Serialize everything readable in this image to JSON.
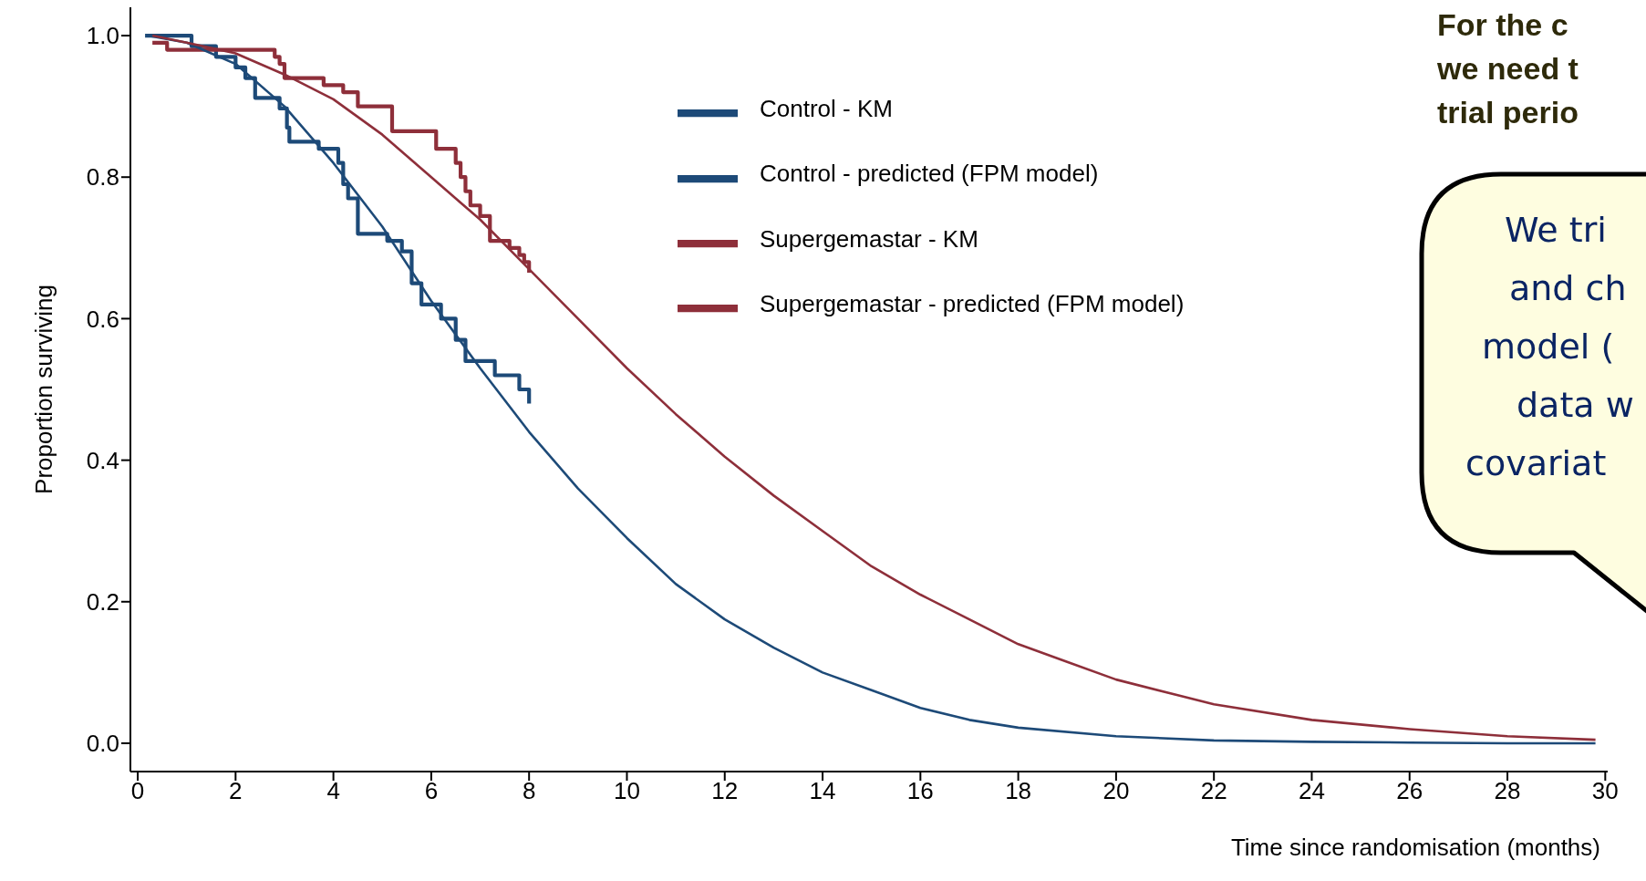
{
  "chart_data": {
    "type": "line",
    "title": "For the c\nwe need t\ntrial perio",
    "xlabel": "Time since randomisation (months)",
    "ylabel": "Proportion surviving",
    "annotations": [
      "We tri",
      "and ch",
      "model (",
      "data w",
      "covariat"
    ],
    "xlim": [
      -0.15,
      30.05
    ],
    "xticks": [
      0,
      2,
      4,
      6,
      8,
      10,
      12,
      14,
      16,
      18,
      20,
      22,
      24,
      26,
      28,
      30
    ],
    "ylim": [
      -0.04,
      1.04
    ],
    "yticks": [
      {
        "value": 0,
        "label": "0.0"
      },
      0.2,
      0.4,
      0.6,
      0.8,
      {
        "value": 1,
        "label": "1.0"
      }
    ],
    "legend": "top",
    "line_style": "solid",
    "series": [
      {
        "name": "Control - KM",
        "type": "step",
        "color": "#1d4a78",
        "x": [
          0.15,
          1.1,
          1.6,
          2.0,
          2.2,
          2.4,
          2.9,
          3.05,
          3.1,
          3.7,
          4.1,
          4.2,
          4.3,
          4.5,
          5.1,
          5.4,
          5.6,
          5.8,
          6.2,
          6.5,
          6.7,
          7.3,
          7.8,
          8.0
        ],
        "values": [
          1.0,
          0.985,
          0.97,
          0.955,
          0.94,
          0.912,
          0.897,
          0.87,
          0.85,
          0.84,
          0.82,
          0.79,
          0.77,
          0.72,
          0.71,
          0.695,
          0.65,
          0.62,
          0.6,
          0.57,
          0.54,
          0.52,
          0.5,
          0.48
        ]
      },
      {
        "name": "Supergemastar - KM",
        "type": "step",
        "color": "#8e2f3a",
        "x": [
          0.3,
          0.6,
          2.8,
          2.9,
          3.0,
          3.8,
          4.2,
          4.5,
          5.2,
          6.1,
          6.5,
          6.6,
          6.7,
          6.8,
          7.0,
          7.2,
          7.6,
          7.8,
          7.9,
          8.0
        ],
        "values": [
          0.99,
          0.98,
          0.97,
          0.96,
          0.94,
          0.93,
          0.92,
          0.9,
          0.865,
          0.84,
          0.82,
          0.8,
          0.78,
          0.76,
          0.745,
          0.71,
          0.7,
          0.69,
          0.68,
          0.665
        ]
      },
      {
        "name": "Control - predicted (FPM model)",
        "type": "line",
        "color": "#1d4a78",
        "x": [
          0.2,
          1,
          2,
          3,
          4,
          5,
          6,
          7,
          8,
          9,
          10,
          11,
          12,
          13,
          14,
          15,
          16,
          17,
          18,
          20,
          22,
          24,
          26,
          28,
          29.8
        ],
        "values": [
          1.0,
          0.99,
          0.96,
          0.9,
          0.82,
          0.73,
          0.625,
          0.53,
          0.44,
          0.36,
          0.29,
          0.225,
          0.175,
          0.135,
          0.1,
          0.075,
          0.05,
          0.033,
          0.022,
          0.01,
          0.004,
          0.002,
          0.001,
          0,
          0
        ]
      },
      {
        "name": "Supergemastar - predicted (FPM model)",
        "type": "line",
        "color": "#8e2f3a",
        "x": [
          0.3,
          1,
          2,
          3,
          4,
          5,
          6,
          7,
          8,
          9,
          10,
          11,
          12,
          13,
          14,
          15,
          16,
          17,
          18,
          19,
          20,
          22,
          24,
          26,
          28,
          29.8
        ],
        "values": [
          1.0,
          0.99,
          0.975,
          0.945,
          0.91,
          0.86,
          0.8,
          0.74,
          0.67,
          0.6,
          0.53,
          0.465,
          0.405,
          0.35,
          0.3,
          0.25,
          0.21,
          0.175,
          0.14,
          0.115,
          0.09,
          0.055,
          0.033,
          0.02,
          0.01,
          0.005
        ]
      }
    ]
  }
}
